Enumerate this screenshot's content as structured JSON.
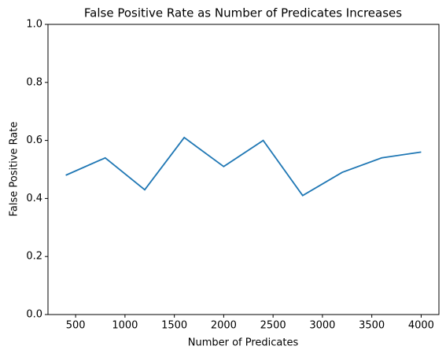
{
  "chart_data": {
    "type": "line",
    "title": "False Positive Rate as Number of Predicates Increases",
    "xlabel": "Number of Predicates",
    "ylabel": "False Positive Rate",
    "x": [
      400,
      800,
      1200,
      1600,
      2000,
      2400,
      2800,
      3200,
      3600,
      4000
    ],
    "series": [
      {
        "color": "#1f77b4",
        "values": [
          0.48,
          0.54,
          0.43,
          0.61,
          0.51,
          0.6,
          0.41,
          0.49,
          0.54,
          0.56
        ]
      }
    ],
    "xlim": [
      220,
      4180
    ],
    "xticks": [
      500,
      1000,
      1500,
      2000,
      2500,
      3000,
      3500,
      4000
    ],
    "ylim": [
      0,
      1
    ],
    "yticks": [
      {
        "value": 0,
        "label": "0.0"
      },
      0.2,
      0.4,
      0.6,
      0.8,
      {
        "value": 1,
        "label": "1.0"
      }
    ]
  }
}
